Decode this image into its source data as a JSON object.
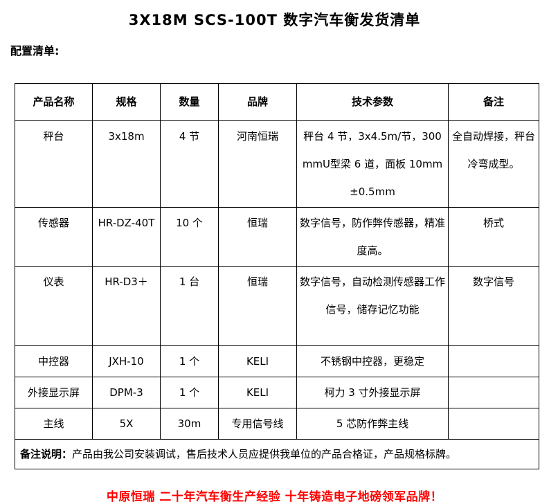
{
  "page": {
    "title": "3X18M SCS-100T 数字汽车衡发货清单",
    "section_label": "配置清单:",
    "footer": "中原恒瑞 二十年汽车衡生产经验 十年铸造电子地磅领军品牌！",
    "colors": {
      "text": "#000000",
      "accent_red": "#FF0000",
      "border": "#000000",
      "background": "#FFFFFF"
    }
  },
  "table": {
    "headers": [
      "产品名称",
      "规格",
      "数量",
      "品牌",
      "技术参数",
      "备注"
    ],
    "rows": [
      {
        "name": "秤台",
        "spec": "3x18m",
        "qty": "4 节",
        "brand": "河南恒瑞",
        "params": "秤台 4 节，3x4.5m/节，300mmU型梁 6 道，面板 10mm±0.5mm",
        "note": "全自动焊接，秤台冷弯成型。"
      },
      {
        "name": "传感器",
        "spec": "HR-DZ-40T",
        "qty": "10 个",
        "brand": "恒瑞",
        "params": "数字信号，防作弊传感器，精准度高。",
        "note": "桥式"
      },
      {
        "name": "仪表",
        "spec": "HR-D3＋",
        "qty": "1 台",
        "brand": "恒瑞",
        "params": "数字信号，自动检测传感器工作信号，储存记忆功能",
        "note": "数字信号"
      },
      {
        "name": "中控器",
        "spec": "JXH-10",
        "qty": "1 个",
        "brand": "KELI",
        "params": "不锈钢中控器，更稳定",
        "note": ""
      },
      {
        "name": "外接显示屏",
        "spec": "DPM-3",
        "qty": "1 个",
        "brand": "KELI",
        "params": "柯力 3 寸外接显示屏",
        "note": ""
      },
      {
        "name": "主线",
        "spec": "5X",
        "qty": "30m",
        "brand": "专用信号线",
        "params": "5 芯防作弊主线",
        "note": ""
      }
    ],
    "remark": {
      "label": "备注说明：",
      "text": "产品由我公司安装调试，售后技术人员应提供我单位的产品合格证，产品规格标牌。"
    }
  }
}
